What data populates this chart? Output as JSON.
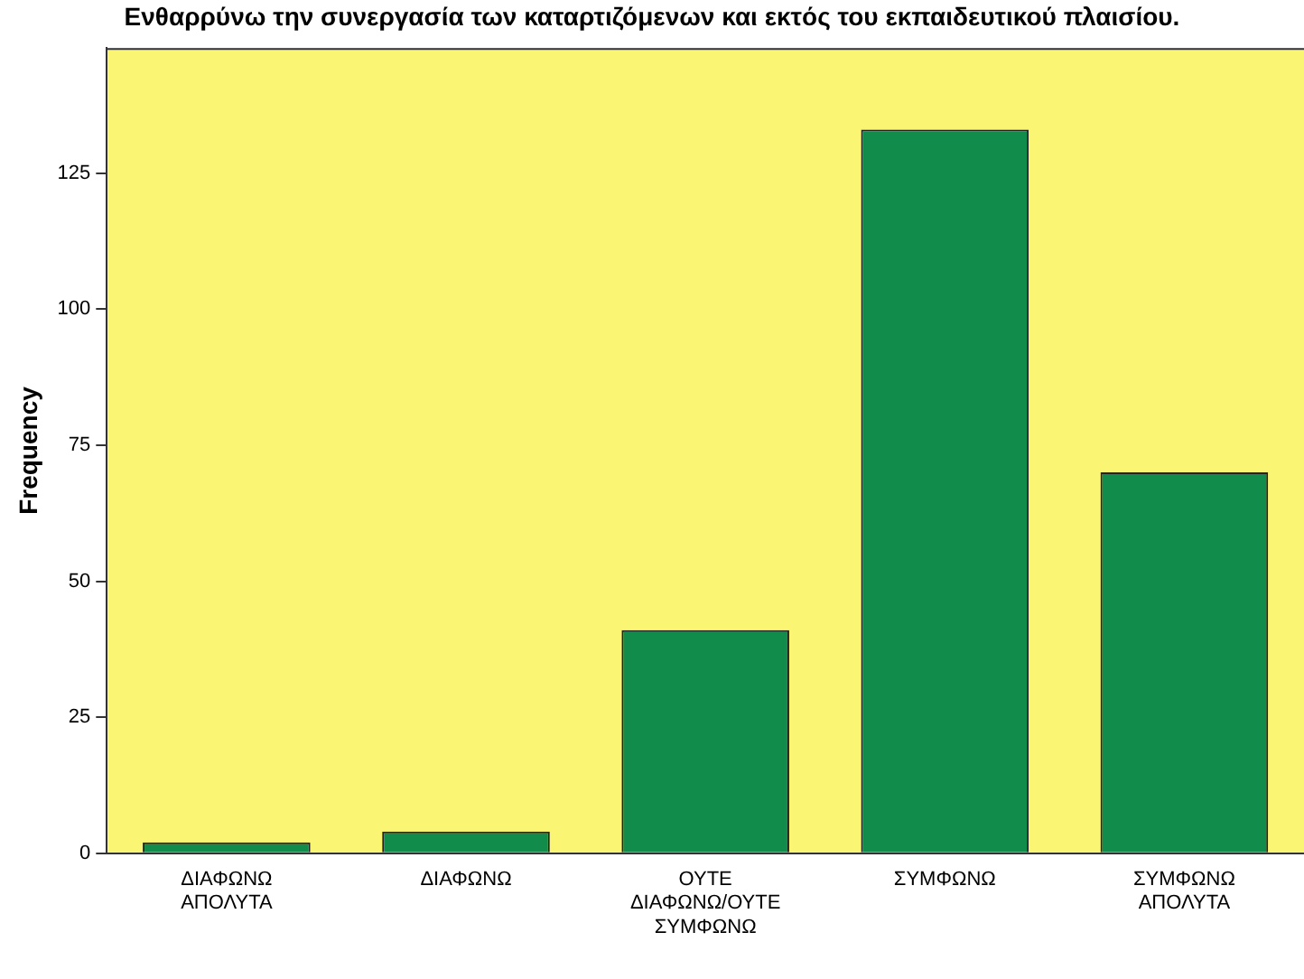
{
  "chart_data": {
    "type": "bar",
    "title": "Ενθαρρύνω την συνεργασία των καταρτιζόμενων και εκτός του εκπαιδευτικού πλαισίου.",
    "ylabel": "Frequency",
    "categories": [
      "ΔΙΑΦΩΝΩ ΑΠΟΛΥΤΑ",
      "ΔΙΑΦΩΝΩ",
      "ΟΥΤΕ ΔΙΑΦΩΝΩ/ΟΥΤΕ ΣΥΜΦΩΝΩ",
      "ΣΥΜΦΩΝΩ",
      "ΣΥΜΦΩΝΩ ΑΠΟΛΥΤΑ"
    ],
    "values": [
      2,
      4,
      41,
      133,
      70
    ],
    "color": "#118c4a",
    "ylim": [
      0,
      148
    ],
    "yticks": [
      0,
      25,
      50,
      75,
      100,
      125
    ],
    "grid": false,
    "legend": false
  }
}
